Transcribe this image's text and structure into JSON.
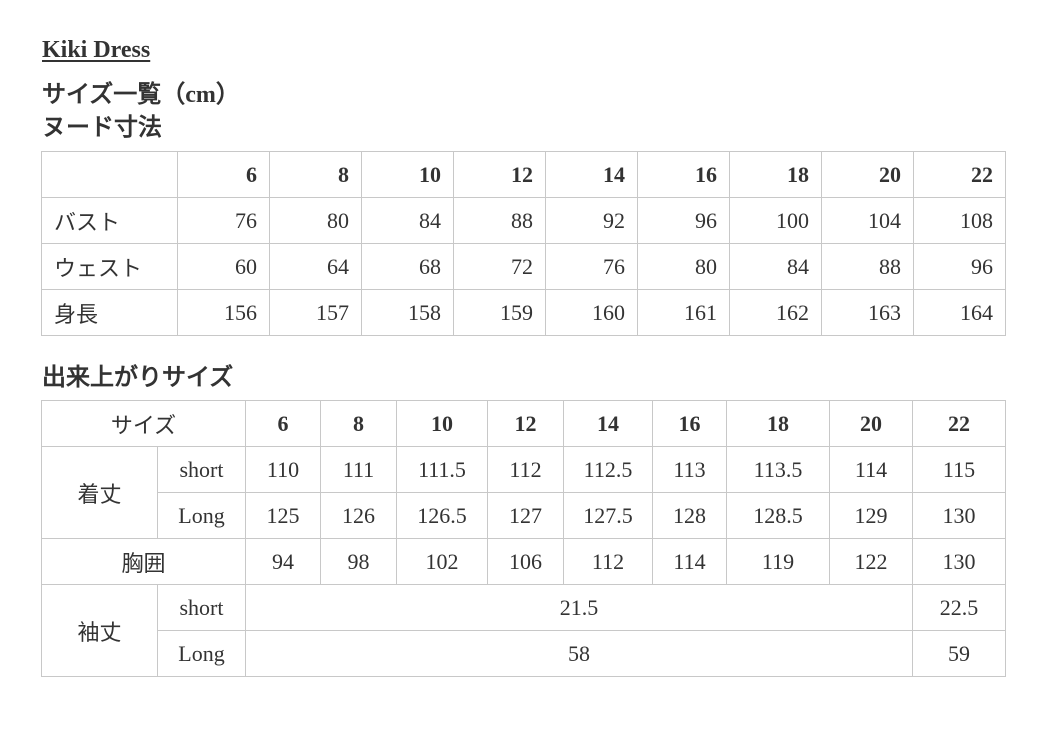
{
  "title": "Kiki Dress",
  "subtitle": "サイズ一覧（cm）",
  "nude": {
    "heading": "ヌード寸法",
    "sizes": [
      "6",
      "8",
      "10",
      "12",
      "14",
      "16",
      "18",
      "20",
      "22"
    ],
    "rows": [
      {
        "label": "バスト",
        "values": [
          "76",
          "80",
          "84",
          "88",
          "92",
          "96",
          "100",
          "104",
          "108"
        ]
      },
      {
        "label": "ウェスト",
        "values": [
          "60",
          "64",
          "68",
          "72",
          "76",
          "80",
          "84",
          "88",
          "96"
        ]
      },
      {
        "label": "身長",
        "values": [
          "156",
          "157",
          "158",
          "159",
          "160",
          "161",
          "162",
          "163",
          "164"
        ]
      }
    ]
  },
  "finished": {
    "heading": "出来上がりサイズ",
    "size_label": "サイズ",
    "sizes": [
      "6",
      "8",
      "10",
      "12",
      "14",
      "16",
      "18",
      "20",
      "22"
    ],
    "length": {
      "label": "着丈",
      "short_label": "short",
      "short": [
        "110",
        "111",
        "111.5",
        "112",
        "112.5",
        "113",
        "113.5",
        "114",
        "115"
      ],
      "long_label": "Long",
      "long": [
        "125",
        "126",
        "126.5",
        "127",
        "127.5",
        "128",
        "128.5",
        "129",
        "130"
      ]
    },
    "chest": {
      "label": "胸囲",
      "values": [
        "94",
        "98",
        "102",
        "106",
        "112",
        "114",
        "119",
        "122",
        "130"
      ]
    },
    "sleeve": {
      "label": "袖丈",
      "short_label": "short",
      "short_6_20": "21.5",
      "short_22": "22.5",
      "long_label": "Long",
      "long_6_20": "58",
      "long_22": "59"
    }
  }
}
